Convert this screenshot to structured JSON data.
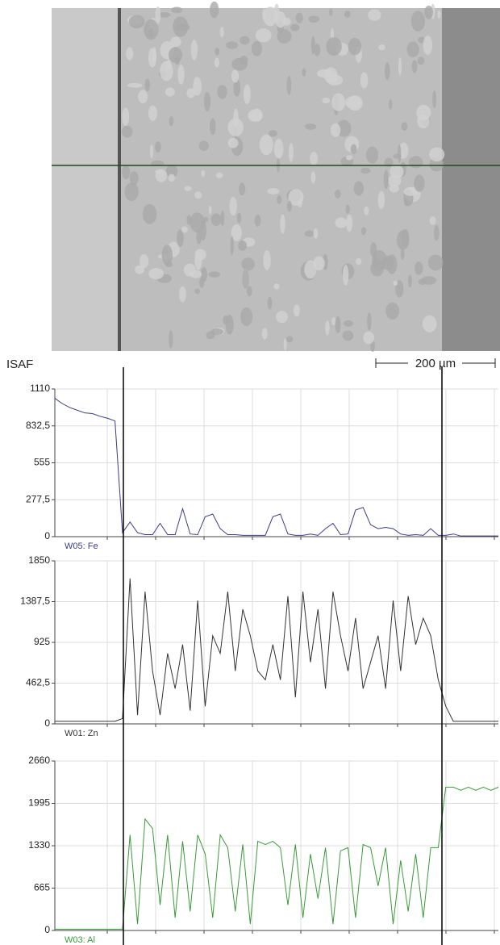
{
  "image_label": "ISAF",
  "scale_bar": "200 µm",
  "chart_data": [
    {
      "type": "line",
      "ylim": [
        0,
        1110
      ],
      "yticks": [
        0,
        {
          "value": 277.5,
          "label": "277,5"
        },
        555,
        {
          "value": 832.5,
          "label": "832,5"
        },
        1110
      ],
      "series": [
        {
          "name": "W05: Fe",
          "color": "#3c3c8c",
          "values": [
            1040,
            1000,
            970,
            950,
            930,
            925,
            905,
            890,
            870,
            30,
            110,
            30,
            15,
            15,
            100,
            15,
            15,
            210,
            20,
            15,
            150,
            170,
            60,
            15,
            15,
            10,
            10,
            10,
            10,
            150,
            170,
            20,
            10,
            10,
            20,
            10,
            60,
            100,
            15,
            20,
            200,
            220,
            90,
            60,
            70,
            60,
            20,
            10,
            15,
            10,
            60,
            10,
            10,
            20,
            5,
            5,
            5,
            5,
            5,
            5
          ]
        }
      ]
    },
    {
      "type": "line",
      "ylim": [
        0,
        1850
      ],
      "yticks": [
        0,
        {
          "value": 462.5,
          "label": "462,5"
        },
        925,
        {
          "value": 1387.5,
          "label": "1387,5"
        },
        1850
      ],
      "series": [
        {
          "name": "W01: Zn",
          "color": "#333333",
          "values": [
            30,
            30,
            30,
            30,
            30,
            30,
            30,
            30,
            30,
            60,
            1650,
            100,
            1500,
            600,
            100,
            800,
            400,
            900,
            150,
            1400,
            200,
            1000,
            800,
            1500,
            600,
            1300,
            1000,
            600,
            500,
            900,
            500,
            1450,
            300,
            1500,
            700,
            1300,
            400,
            1500,
            1000,
            600,
            1200,
            400,
            700,
            1000,
            400,
            1400,
            600,
            1450,
            900,
            1200,
            1000,
            500,
            200,
            30,
            30,
            30,
            30,
            30,
            30,
            30
          ]
        }
      ]
    },
    {
      "type": "line",
      "ylim": [
        0,
        2660
      ],
      "yticks": [
        0,
        665,
        1330,
        1995,
        2660
      ],
      "series": [
        {
          "name": "W03: Al",
          "color": "#3a9a3a",
          "values": [
            20,
            20,
            20,
            20,
            20,
            20,
            20,
            20,
            20,
            20,
            1500,
            100,
            1750,
            1600,
            400,
            1500,
            200,
            1400,
            300,
            1500,
            1200,
            200,
            1500,
            1300,
            300,
            1350,
            100,
            1400,
            1350,
            1400,
            1300,
            400,
            1350,
            200,
            1200,
            500,
            1300,
            100,
            1250,
            1300,
            200,
            1350,
            1300,
            700,
            1300,
            100,
            1100,
            300,
            1200,
            200,
            1300,
            1300,
            2250,
            2250,
            2200,
            2250,
            2200,
            2250,
            2200,
            2250
          ]
        }
      ]
    }
  ]
}
